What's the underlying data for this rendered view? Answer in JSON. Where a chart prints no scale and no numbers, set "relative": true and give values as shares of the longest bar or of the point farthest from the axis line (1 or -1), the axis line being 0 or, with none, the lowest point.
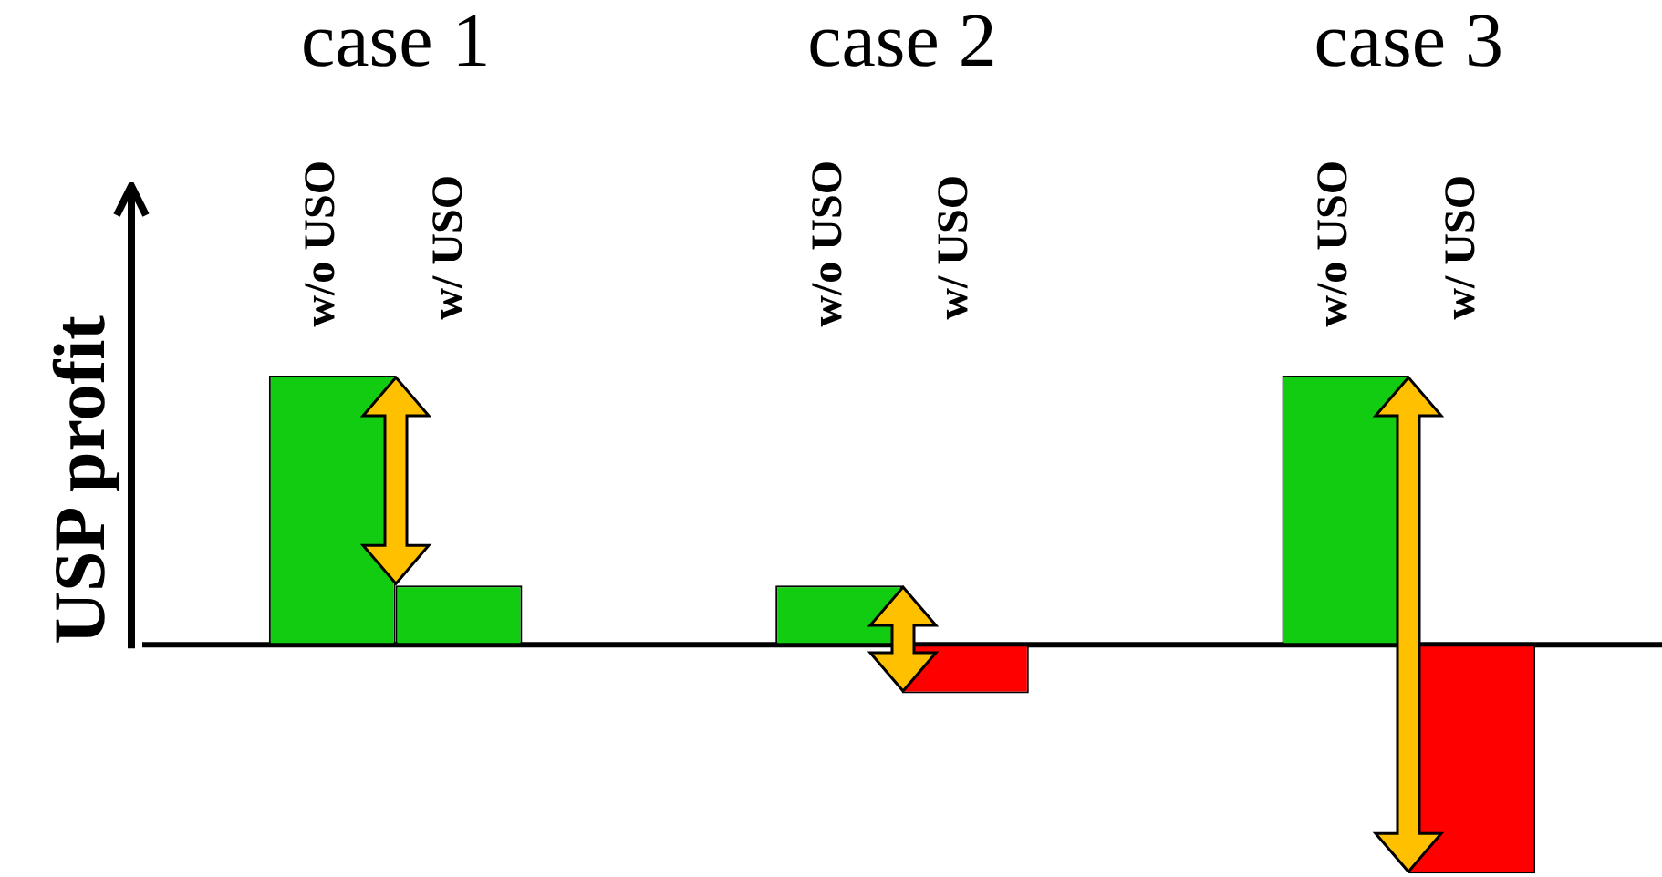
{
  "chart_data": {
    "type": "bar",
    "relative": true,
    "ylabel": "USP profit",
    "categories": [
      "case 1",
      "case 2",
      "case 3"
    ],
    "series": [
      {
        "name": "w/o USO",
        "colors": [
          "#11cc11",
          "#11cc11",
          "#11cc11"
        ],
        "values": [
          1,
          0.22,
          1
        ]
      },
      {
        "name": "w/ USO",
        "colors": [
          "#11cc11",
          "#ff0000",
          "#ff0000"
        ],
        "values": [
          0.22,
          -0.18,
          -0.85
        ]
      }
    ]
  }
}
